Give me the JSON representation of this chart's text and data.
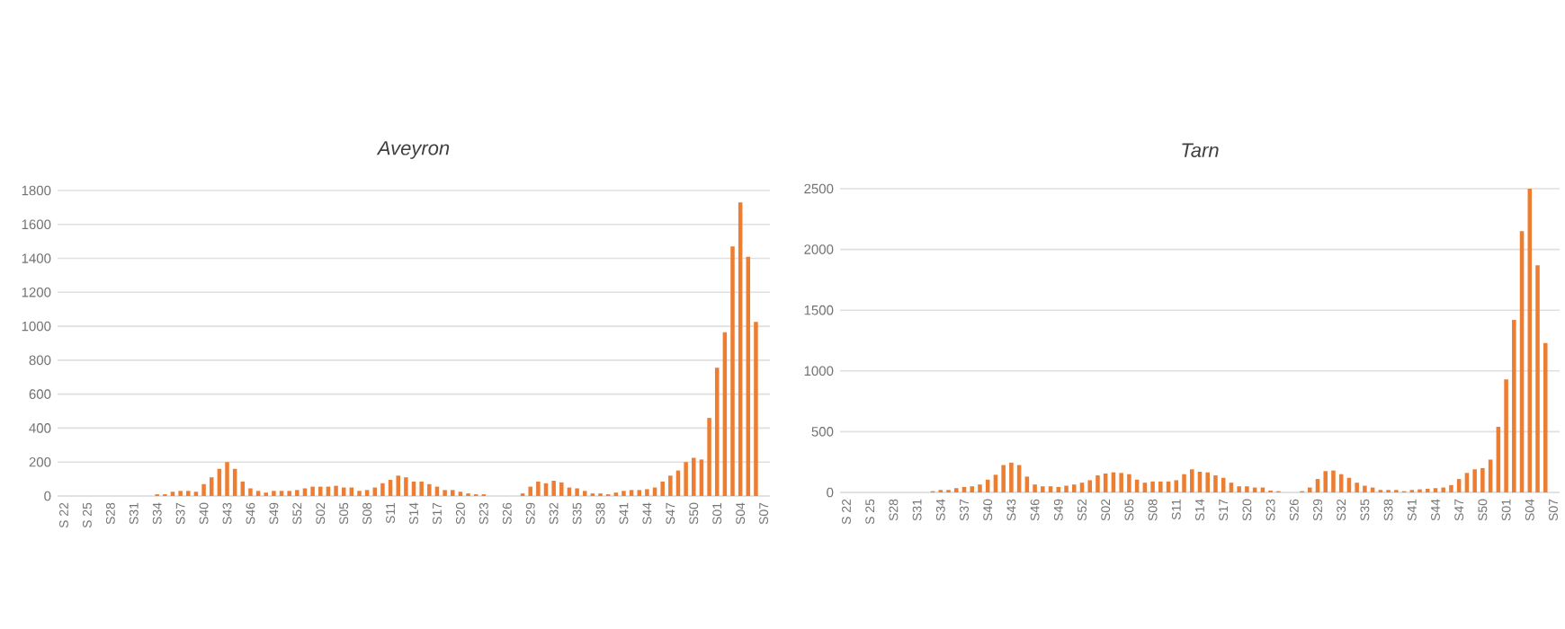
{
  "chart_data": [
    {
      "type": "bar",
      "title": "Aveyron",
      "color": "#ed7d31",
      "grid": "y",
      "ylim": [
        0,
        1800
      ],
      "yticks": [
        0,
        200,
        400,
        600,
        800,
        1000,
        1200,
        1400,
        1600,
        1800
      ],
      "categories": [
        "S 22",
        null,
        null,
        "S 25",
        null,
        null,
        "S28",
        null,
        null,
        "S31",
        null,
        null,
        "S34",
        null,
        null,
        "S37",
        null,
        null,
        "S40",
        null,
        null,
        "S43",
        null,
        null,
        "S46",
        null,
        null,
        "S49",
        null,
        null,
        "S52",
        null,
        null,
        "S02",
        null,
        null,
        "S05",
        null,
        null,
        "S08",
        null,
        null,
        "S11",
        null,
        null,
        "S14",
        null,
        null,
        "S17",
        null,
        null,
        "S20",
        null,
        null,
        "S23",
        null,
        null,
        "S26",
        null,
        null,
        "S29",
        null,
        null,
        "S32",
        null,
        null,
        "S35",
        null,
        null,
        "S38",
        null,
        null,
        "S41",
        null,
        null,
        "S44",
        null,
        null,
        "S47",
        null,
        null,
        "S50",
        null,
        null,
        "S01",
        null,
        null,
        "S04",
        null,
        null,
        "S07"
      ],
      "values": [
        0,
        0,
        0,
        0,
        0,
        0,
        0,
        0,
        0,
        0,
        0,
        0,
        10,
        10,
        25,
        30,
        30,
        25,
        70,
        110,
        160,
        200,
        160,
        85,
        45,
        30,
        20,
        30,
        30,
        30,
        35,
        45,
        55,
        55,
        55,
        60,
        50,
        50,
        30,
        35,
        50,
        75,
        95,
        120,
        110,
        85,
        85,
        70,
        55,
        35,
        35,
        25,
        15,
        10,
        10,
        0,
        0,
        0,
        0,
        15,
        55,
        85,
        75,
        90,
        80,
        50,
        45,
        30,
        15,
        15,
        10,
        20,
        30,
        35,
        35,
        40,
        50,
        85,
        120,
        150,
        200,
        225,
        215,
        460,
        755,
        965,
        1470,
        1730,
        1410,
        1025,
        null
      ]
    },
    {
      "type": "bar",
      "title": "Tarn",
      "color": "#ed7d31",
      "grid": "y",
      "ylim": [
        0,
        2500
      ],
      "yticks": [
        0,
        500,
        1000,
        1500,
        2000,
        2500
      ],
      "categories": [
        "S 22",
        null,
        null,
        "S 25",
        null,
        null,
        "S28",
        null,
        null,
        "S31",
        null,
        null,
        "S34",
        null,
        null,
        "S37",
        null,
        null,
        "S40",
        null,
        null,
        "S43",
        null,
        null,
        "S46",
        null,
        null,
        "S49",
        null,
        null,
        "S52",
        null,
        null,
        "S02",
        null,
        null,
        "S05",
        null,
        null,
        "S08",
        null,
        null,
        "S11",
        null,
        null,
        "S14",
        null,
        null,
        "S17",
        null,
        null,
        "S20",
        null,
        null,
        "S23",
        null,
        null,
        "S26",
        null,
        null,
        "S29",
        null,
        null,
        "S32",
        null,
        null,
        "S35",
        null,
        null,
        "S38",
        null,
        null,
        "S41",
        null,
        null,
        "S44",
        null,
        null,
        "S47",
        null,
        null,
        "S50",
        null,
        null,
        "S01",
        null,
        null,
        "S04",
        null,
        null,
        "S07"
      ],
      "values": [
        0,
        0,
        0,
        0,
        0,
        0,
        0,
        0,
        0,
        0,
        0,
        10,
        20,
        20,
        35,
        45,
        50,
        65,
        105,
        145,
        225,
        245,
        225,
        130,
        65,
        50,
        50,
        45,
        55,
        65,
        80,
        100,
        140,
        155,
        165,
        160,
        150,
        105,
        80,
        90,
        90,
        90,
        100,
        150,
        190,
        170,
        165,
        140,
        120,
        80,
        50,
        50,
        40,
        40,
        15,
        10,
        0,
        0,
        10,
        40,
        110,
        175,
        180,
        150,
        120,
        80,
        55,
        40,
        20,
        20,
        20,
        10,
        20,
        25,
        30,
        35,
        40,
        60,
        110,
        160,
        190,
        200,
        270,
        540,
        930,
        1420,
        2150,
        2500,
        1870,
        1230,
        null
      ]
    }
  ]
}
